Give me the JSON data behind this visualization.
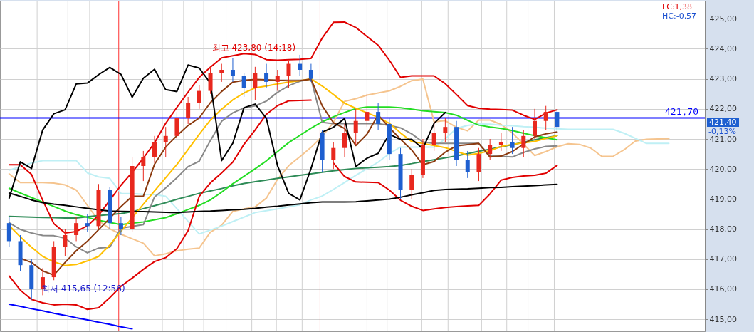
{
  "chart_data": {
    "type": "candlestick",
    "categories": [
      null,
      null,
      null,
      null,
      null,
      null,
      null,
      null,
      null,
      null,
      null,
      null,
      null,
      null,
      null,
      null,
      null,
      null,
      null,
      null,
      null,
      null,
      null,
      null,
      null,
      null,
      null,
      null,
      null,
      null,
      null,
      null,
      null,
      null,
      null,
      null,
      null,
      null,
      null,
      null,
      null,
      null,
      null,
      null,
      null,
      null,
      null,
      null,
      null,
      null,
      null,
      null,
      null,
      null,
      null,
      null,
      null,
      null,
      null,
      null
    ],
    "ohlc": [
      [
        418.2,
        418.4,
        417.4,
        417.6
      ],
      [
        417.6,
        417.8,
        416.6,
        416.8
      ],
      [
        416.8,
        417.0,
        415.65,
        416.0
      ],
      [
        416.0,
        416.7,
        415.8,
        416.4
      ],
      [
        416.4,
        417.6,
        416.3,
        417.4
      ],
      [
        417.4,
        418.0,
        417.1,
        417.8
      ],
      [
        417.8,
        418.4,
        417.6,
        418.2
      ],
      [
        418.2,
        418.5,
        417.9,
        418.1
      ],
      [
        418.1,
        419.5,
        418.0,
        419.3
      ],
      [
        419.3,
        419.4,
        418.0,
        418.2
      ],
      [
        418.2,
        418.4,
        417.8,
        418.0
      ],
      [
        418.0,
        420.4,
        417.9,
        420.1
      ],
      [
        420.1,
        420.6,
        419.6,
        420.4
      ],
      [
        420.4,
        421.1,
        420.2,
        420.9
      ],
      [
        420.9,
        421.4,
        420.4,
        421.1
      ],
      [
        421.1,
        421.9,
        421.0,
        421.7
      ],
      [
        421.7,
        422.4,
        421.5,
        422.2
      ],
      [
        422.2,
        422.8,
        422.0,
        422.6
      ],
      [
        422.6,
        423.4,
        422.5,
        423.2
      ],
      [
        423.2,
        423.5,
        422.9,
        423.3
      ],
      [
        423.3,
        423.7,
        422.9,
        423.1
      ],
      [
        423.1,
        423.2,
        422.4,
        422.7
      ],
      [
        422.7,
        423.4,
        422.3,
        423.2
      ],
      [
        423.2,
        423.5,
        422.7,
        422.9
      ],
      [
        422.9,
        423.3,
        422.6,
        423.1
      ],
      [
        423.1,
        423.6,
        422.7,
        423.5
      ],
      [
        423.5,
        423.8,
        423.1,
        423.3
      ],
      [
        423.3,
        423.5,
        422.9,
        423.0
      ],
      [
        421.2,
        421.3,
        419.9,
        420.3
      ],
      [
        420.3,
        420.9,
        420.0,
        420.7
      ],
      [
        420.7,
        421.5,
        420.4,
        421.2
      ],
      [
        421.2,
        422.0,
        420.8,
        421.6
      ],
      [
        421.6,
        422.5,
        421.4,
        421.9
      ],
      [
        421.9,
        422.2,
        421.3,
        421.5
      ],
      [
        421.5,
        421.7,
        420.3,
        420.5
      ],
      [
        420.5,
        420.7,
        419.0,
        419.3
      ],
      [
        419.3,
        420.0,
        419.0,
        419.8
      ],
      [
        419.8,
        421.0,
        419.7,
        420.8
      ],
      [
        420.8,
        421.6,
        420.6,
        421.2
      ],
      [
        421.2,
        421.7,
        420.9,
        421.4
      ],
      [
        421.4,
        421.6,
        420.1,
        420.3
      ],
      [
        420.3,
        420.6,
        419.7,
        419.9
      ],
      [
        419.9,
        420.7,
        419.6,
        420.5
      ],
      [
        420.5,
        421.0,
        420.3,
        420.8
      ],
      [
        420.8,
        421.2,
        420.6,
        420.9
      ],
      [
        420.9,
        421.4,
        420.5,
        420.7
      ],
      [
        420.7,
        421.3,
        420.4,
        421.1
      ],
      [
        421.1,
        422.0,
        421.0,
        421.6
      ],
      [
        421.6,
        422.1,
        421.3,
        421.9
      ],
      [
        421.9,
        421.95,
        421.2,
        421.4
      ],
      null,
      null,
      null,
      null,
      null,
      null,
      null,
      null,
      null,
      null
    ],
    "series": [
      {
        "type": "line",
        "color": "#f5c48e",
        "values": [
          419.84,
          419.55,
          419.55,
          419.55,
          419.53,
          419.47,
          419.3,
          418.79,
          418.28,
          418.01,
          417.83,
          417.68,
          417.53,
          417.11,
          417.18,
          417.28,
          417.33,
          417.37,
          417.9,
          418.13,
          418.59,
          418.67,
          418.74,
          419.03,
          419.66,
          420.11,
          420.41,
          420.72,
          421.09,
          421.55,
          422.25,
          422.34,
          422.46,
          422.53,
          422.6,
          422.75,
          422.94,
          422.99,
          421.57,
          421.61,
          421.39,
          421.27,
          421.63,
          421.63,
          421.48,
          421.2,
          420.83,
          420.45,
          420.58,
          420.74,
          420.84,
          420.82,
          420.7,
          420.42,
          420.42,
          420.64,
          420.93,
          420.99,
          421.0,
          421.01
        ]
      },
      {
        "type": "line",
        "color": "#bff0f5",
        "values": [
          419.96,
          420.08,
          420.2,
          420.28,
          420.28,
          420.28,
          420.28,
          419.87,
          419.74,
          419.69,
          419.19,
          419.18,
          419.16,
          419.15,
          419.09,
          418.68,
          418.26,
          417.84,
          417.97,
          418.1,
          418.25,
          418.4,
          418.55,
          418.61,
          418.67,
          418.74,
          418.81,
          418.97,
          419.1,
          419.32,
          419.55,
          419.79,
          420.01,
          420.23,
          420.51,
          420.73,
          420.73,
          420.73,
          420.73,
          421.0,
          421.35,
          421.45,
          421.5,
          421.49,
          421.46,
          421.44,
          421.41,
          421.39,
          421.36,
          421.34,
          421.32,
          421.32,
          421.32,
          421.32,
          421.32,
          421.19,
          421.02,
          420.85,
          420.85,
          420.85
        ]
      },
      {
        "type": "line",
        "color": "#2e8b57",
        "values": [
          418.42,
          418.41,
          418.4,
          418.39,
          418.38,
          418.37,
          418.37,
          418.41,
          418.45,
          418.48,
          418.52,
          418.58,
          418.68,
          418.78,
          418.88,
          418.99,
          419.09,
          419.19,
          419.27,
          419.35,
          419.44,
          419.52,
          419.58,
          419.63,
          419.69,
          419.74,
          419.79,
          419.84,
          419.89,
          419.94,
          419.98,
          420.02,
          420.04,
          420.06,
          420.08,
          420.12,
          420.18,
          420.25,
          420.31,
          420.37,
          420.44,
          420.51,
          420.59,
          420.66,
          420.74,
          420.81,
          420.89,
          420.97,
          421.04,
          421.11,
          null,
          null,
          null,
          null,
          null,
          null,
          null,
          null,
          null,
          null
        ]
      },
      {
        "type": "line",
        "color": "#22dd22",
        "values": [
          419.36,
          419.2,
          419.05,
          418.9,
          418.75,
          418.6,
          418.48,
          418.39,
          418.29,
          418.22,
          418.15,
          418.2,
          418.24,
          418.31,
          418.38,
          418.51,
          418.65,
          418.79,
          418.97,
          419.23,
          419.51,
          419.76,
          420.01,
          420.27,
          420.58,
          420.88,
          421.12,
          421.36,
          421.57,
          421.74,
          421.88,
          422.01,
          422.06,
          422.06,
          422.06,
          422.04,
          421.99,
          421.94,
          421.91,
          421.88,
          421.79,
          421.62,
          421.46,
          421.4,
          421.35,
          421.28,
          421.19,
          421.11,
          421.04,
          420.97,
          null,
          null,
          null,
          null,
          null,
          null,
          null,
          null,
          null,
          null
        ]
      },
      {
        "type": "line",
        "color": "#888888",
        "values": [
          418.21,
          417.99,
          417.87,
          417.79,
          417.78,
          417.7,
          417.41,
          417.21,
          417.37,
          417.4,
          418.03,
          418.09,
          418.15,
          419.07,
          419.37,
          419.71,
          420.08,
          420.26,
          420.95,
          421.59,
          421.87,
          422.03,
          422.1,
          422.26,
          422.55,
          422.77,
          422.92,
          422.99,
          421.55,
          421.51,
          421.51,
          421.51,
          421.51,
          421.51,
          421.45,
          421.37,
          421.17,
          420.9,
          420.85,
          420.85,
          420.85,
          420.85,
          420.85,
          420.44,
          420.42,
          420.4,
          420.55,
          420.67,
          420.75,
          420.77,
          null,
          null,
          null,
          null,
          null,
          null,
          null,
          null,
          null,
          null
        ]
      },
      {
        "type": "line",
        "color": "#ffc000",
        "values": [
          418.12,
          417.74,
          417.4,
          417.09,
          416.91,
          416.79,
          416.82,
          416.94,
          417.09,
          417.47,
          417.93,
          418.38,
          418.83,
          419.27,
          419.71,
          420.15,
          420.65,
          421.16,
          421.63,
          421.99,
          422.3,
          422.53,
          422.7,
          422.76,
          422.83,
          422.89,
          422.94,
          423.0,
          422.76,
          422.48,
          422.19,
          422.02,
          421.87,
          421.72,
          421.52,
          421.2,
          420.91,
          420.85,
          420.78,
          420.71,
          420.59,
          420.46,
          420.52,
          420.61,
          420.75,
          420.82,
          420.87,
          420.92,
          421.02,
          421.11,
          null,
          null,
          null,
          null,
          null,
          null,
          null,
          null,
          null,
          null
        ]
      },
      {
        "type": "line",
        "color": "#8b3a0f",
        "values": [
          null,
          417.03,
          416.89,
          416.61,
          416.47,
          416.89,
          417.28,
          417.6,
          417.98,
          418.36,
          418.75,
          419.09,
          419.09,
          420.16,
          420.73,
          421.11,
          421.45,
          421.7,
          422.21,
          422.58,
          422.89,
          422.95,
          422.98,
          422.97,
          422.95,
          422.94,
          422.94,
          422.99,
          422.1,
          421.54,
          421.35,
          420.78,
          421.16,
          421.8,
          421.38,
          420.99,
          420.63,
          420.14,
          420.25,
          420.56,
          420.77,
          420.81,
          420.85,
          420.4,
          420.43,
          420.58,
          420.83,
          421.07,
          421.17,
          421.23,
          null,
          null,
          null,
          null,
          null,
          null,
          null,
          null,
          null,
          null
        ]
      },
      {
        "type": "line",
        "color": "#e00000",
        "values": [
          420.14,
          420.14,
          419.82,
          418.96,
          418.18,
          417.87,
          417.92,
          418.11,
          418.46,
          418.96,
          419.46,
          419.89,
          420.36,
          420.87,
          421.52,
          422.05,
          422.56,
          423.05,
          423.39,
          423.7,
          423.77,
          423.84,
          423.81,
          423.64,
          423.62,
          423.64,
          423.65,
          423.68,
          424.36,
          424.88,
          424.89,
          424.71,
          424.41,
          424.12,
          423.62,
          423.05,
          423.1,
          423.1,
          423.1,
          422.84,
          422.48,
          422.11,
          422.02,
          421.99,
          421.98,
          421.96,
          421.79,
          421.65,
          421.86,
          421.97,
          null,
          null,
          null,
          null,
          null,
          null,
          null,
          null,
          null,
          null
        ]
      },
      {
        "type": "line",
        "color": "#e00000",
        "values": [
          416.44,
          415.97,
          415.66,
          415.55,
          415.48,
          415.5,
          415.48,
          415.33,
          415.38,
          415.72,
          416.1,
          416.37,
          416.66,
          416.92,
          417.05,
          417.35,
          417.95,
          419.09,
          419.54,
          419.87,
          420.23,
          420.82,
          421.3,
          421.82,
          422.11,
          422.27,
          422.28,
          422.29,
          null,
          420.2,
          419.75,
          419.57,
          419.56,
          419.55,
          419.3,
          418.96,
          418.76,
          418.62,
          418.67,
          418.72,
          418.75,
          418.77,
          418.79,
          419.17,
          419.63,
          419.72,
          419.77,
          419.79,
          419.86,
          420.12,
          null,
          null,
          null,
          null,
          null,
          null,
          null,
          null,
          null,
          null
        ]
      },
      {
        "type": "line",
        "color": "#000000",
        "values": [
          419.2,
          419.09,
          418.97,
          418.88,
          418.83,
          418.79,
          418.74,
          418.69,
          418.64,
          418.6,
          418.59,
          418.58,
          418.58,
          418.57,
          418.56,
          418.55,
          418.57,
          418.59,
          418.6,
          418.62,
          418.64,
          418.66,
          418.69,
          418.73,
          418.76,
          418.8,
          418.84,
          418.88,
          418.9,
          418.9,
          418.9,
          418.91,
          418.94,
          418.97,
          419.0,
          419.06,
          419.14,
          419.21,
          419.29,
          419.32,
          419.33,
          419.34,
          419.36,
          419.38,
          419.39,
          419.41,
          419.43,
          419.45,
          419.47,
          419.49,
          null,
          null,
          null,
          null,
          null,
          null,
          null,
          null,
          null,
          null
        ]
      },
      {
        "type": "line",
        "color": "#000000",
        "values": [
          419.03,
          420.24,
          420.02,
          421.3,
          421.84,
          421.97,
          422.83,
          422.86,
          423.14,
          423.38,
          423.15,
          422.39,
          423.02,
          423.32,
          422.64,
          422.58,
          423.46,
          423.36,
          422.86,
          420.28,
          420.86,
          422.04,
          422.16,
          421.69,
          420.11,
          419.19,
          418.97,
          420.02,
          421.23,
          421.39,
          421.68,
          420.08,
          420.36,
          420.52,
          421.16,
          420.98,
          420.99,
          420.68,
          421.52,
          421.88,
          null,
          null,
          null,
          null,
          null,
          null,
          null,
          null,
          null,
          null,
          null,
          null,
          null,
          null,
          null,
          null,
          null,
          null,
          null,
          null
        ]
      },
      {
        "type": "line",
        "color": "#0000ff",
        "values": [
          415.5,
          415.43,
          415.35,
          415.28,
          415.2,
          415.13,
          415.05,
          414.98,
          414.9,
          414.83,
          414.75,
          414.68,
          null,
          null,
          null,
          null,
          null,
          null,
          null,
          null,
          null,
          null,
          null,
          null,
          null,
          null,
          null,
          null,
          null,
          null,
          null,
          null,
          null,
          null,
          null,
          null,
          null,
          null,
          null,
          null,
          null,
          null,
          null,
          null,
          null,
          null,
          null,
          null,
          null,
          null,
          null,
          null,
          null,
          null,
          null,
          null,
          null,
          null,
          null,
          null
        ]
      }
    ],
    "ylim": [
      414.6,
      425.6
    ],
    "yticks": [
      {
        "value": 415,
        "label": "415,00"
      },
      {
        "value": 416,
        "label": "416,00"
      },
      {
        "value": 417,
        "label": "417,00"
      },
      {
        "value": 418,
        "label": "418,00"
      },
      {
        "value": 419,
        "label": "419,00"
      },
      {
        "value": 420,
        "label": "420,00"
      },
      {
        "value": 421,
        "label": "421,00"
      },
      {
        "value": 422,
        "label": "422,00"
      },
      {
        "value": 423,
        "label": "423,00"
      },
      {
        "value": 424,
        "label": "424,00"
      },
      {
        "value": 425,
        "label": "425,00"
      }
    ],
    "grid": true,
    "tick_labels": "y",
    "ref_lines": [
      {
        "axis": "y",
        "value": 421.7,
        "label": "421,70",
        "color": "#0000ff"
      }
    ],
    "annotations": [
      {
        "text": "최고 423,80 (14:18)",
        "y": 423.8
      },
      "LC:1,38",
      "HC:-0,57",
      "421,40",
      "-0,13%",
      "최저 415,65 (12:56)"
    ]
  }
}
